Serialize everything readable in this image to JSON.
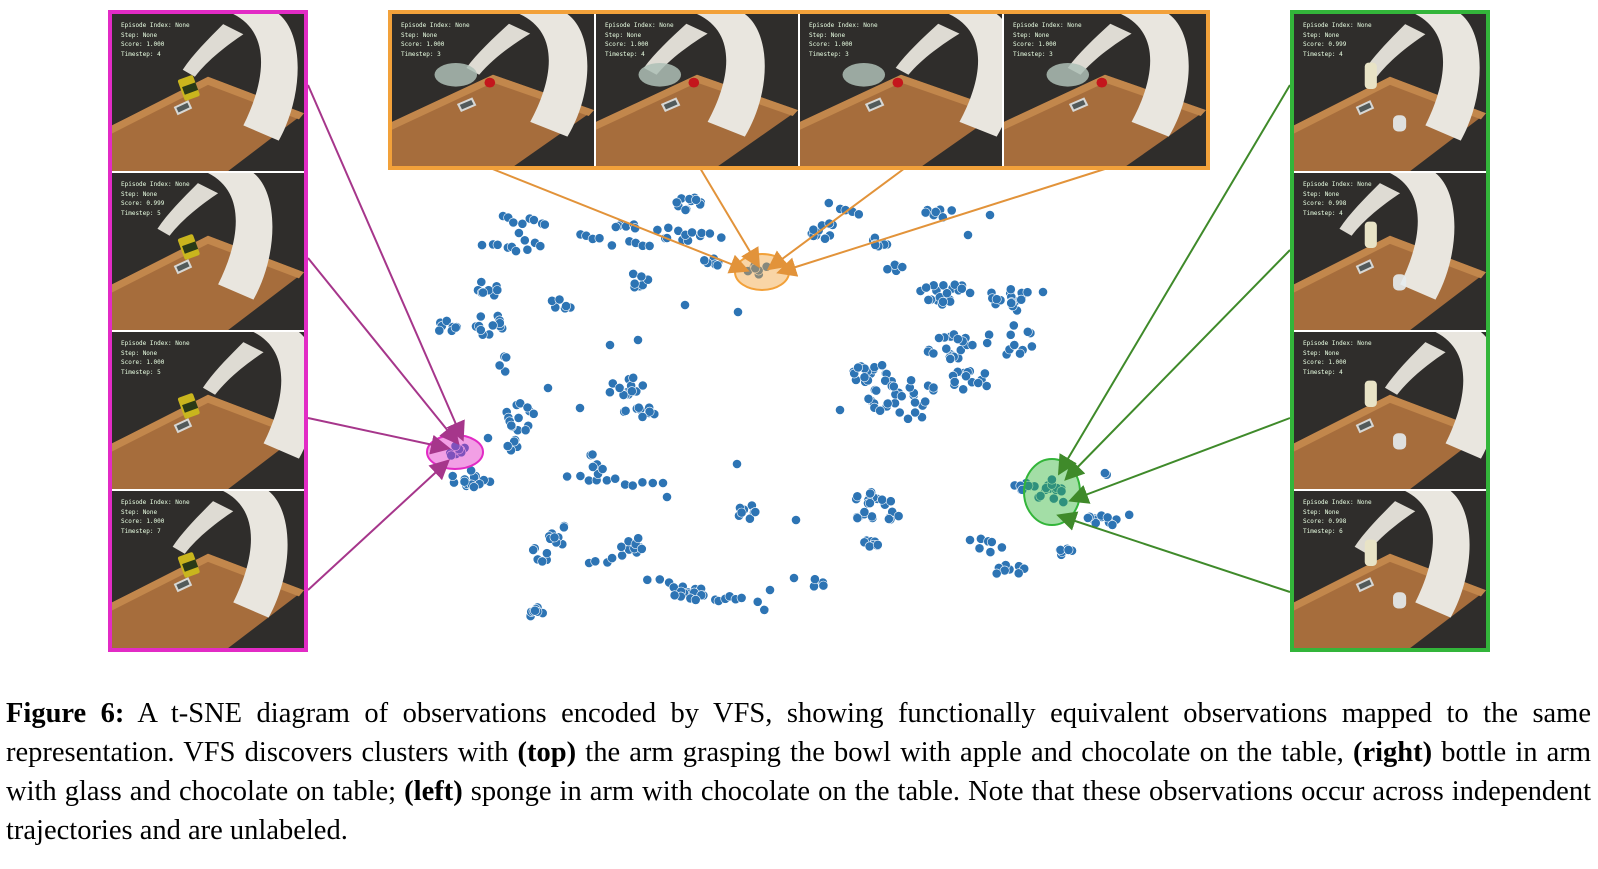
{
  "hud_labels": {
    "episode": "Episode Index:",
    "step": "Step:",
    "score": "Score:",
    "timestep": "Timestep:"
  },
  "panels": {
    "left": [
      {
        "episode": "None",
        "step": "None",
        "score": "1.000",
        "timestep": "4"
      },
      {
        "episode": "None",
        "step": "None",
        "score": "0.999",
        "timestep": "5"
      },
      {
        "episode": "None",
        "step": "None",
        "score": "1.000",
        "timestep": "5"
      },
      {
        "episode": "None",
        "step": "None",
        "score": "1.000",
        "timestep": "7"
      }
    ],
    "top": [
      {
        "episode": "None",
        "step": "None",
        "score": "1.000",
        "timestep": "3"
      },
      {
        "episode": "None",
        "step": "None",
        "score": "1.000",
        "timestep": "4"
      },
      {
        "episode": "None",
        "step": "None",
        "score": "1.000",
        "timestep": "3"
      },
      {
        "episode": "None",
        "step": "None",
        "score": "1.000",
        "timestep": "3"
      }
    ],
    "right": [
      {
        "episode": "None",
        "step": "None",
        "score": "0.999",
        "timestep": "4"
      },
      {
        "episode": "None",
        "step": "None",
        "score": "0.998",
        "timestep": "4"
      },
      {
        "episode": "None",
        "step": "None",
        "score": "1.000",
        "timestep": "4"
      },
      {
        "episode": "None",
        "step": "None",
        "score": "0.998",
        "timestep": "6"
      }
    ]
  },
  "colors": {
    "left_cluster": "#e22bc5",
    "top_cluster": "#f2a13a",
    "right_cluster": "#33b53a",
    "points": "#2d74b4"
  },
  "caption": {
    "label": "Figure 6:",
    "text_1": " A t-SNE diagram of observations encoded by VFS, showing functionally equivalent observations mapped to the same representation. VFS discovers clusters with ",
    "bold_top": "(top)",
    "text_2": " the arm grasping the bowl with apple and chocolate on the table, ",
    "bold_right": "(right)",
    "text_3": " bottle in arm with glass and chocolate on table; ",
    "bold_left": "(left)",
    "text_4": " sponge in arm with chocolate on the table. Note that these observations occur across independent trajectories and are unlabeled."
  }
}
